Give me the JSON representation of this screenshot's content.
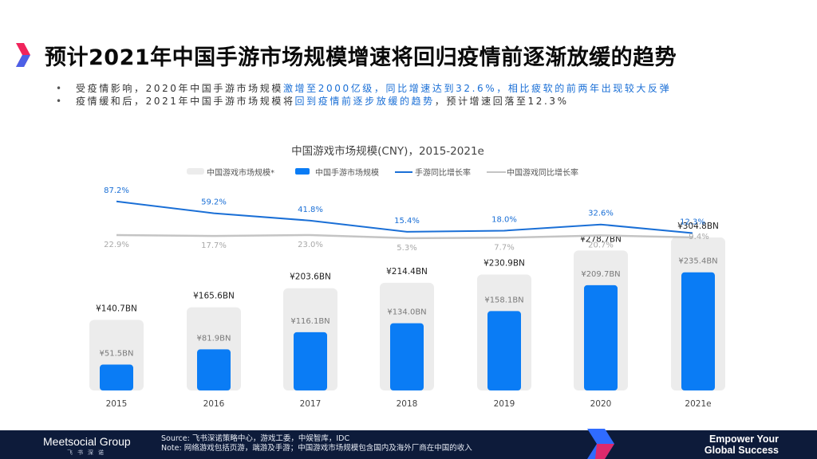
{
  "header": {
    "title": "预计2021年中国手游市场规模增速将回归疫情前逐渐放缓的趋势"
  },
  "bullets": [
    {
      "prefix": "受疫情影响，2020年中国手游市场规模",
      "highlight": "激增至2000亿级，同比增速达到32.6%，相比疲软的前两年出现较大反弹",
      "suffix": ""
    },
    {
      "prefix": "疫情缓和后，2021年中国手游市场规模将",
      "highlight": "回到疫情前逐步放缓的趋势",
      "suffix": "，预计增速回落至12.3%"
    }
  ],
  "colors": {
    "accent": "#1a6fd6",
    "bar_blue": "#0a7cf5",
    "bar_gray": "#ececec",
    "line_blue": "#1a6fd6",
    "line_gray": "#c4c4c4",
    "footer_bg": "#0d1b3a",
    "logo_red": "#f0245c",
    "logo_blue": "#2f6bff"
  },
  "chart_data": {
    "type": "bar",
    "title": "中国游戏市场规模(CNY)，2015-2021e",
    "categories": [
      "2015",
      "2016",
      "2017",
      "2018",
      "2019",
      "2020",
      "2021e"
    ],
    "series": [
      {
        "name": "中国游戏市场规模*",
        "kind": "bar",
        "values": [
          140.7,
          165.6,
          203.6,
          214.4,
          230.9,
          278.7,
          304.8
        ],
        "labels": [
          "¥140.7BN",
          "¥165.6BN",
          "¥203.6BN",
          "¥214.4BN",
          "¥230.9BN",
          "¥278.7BN",
          "¥304.8BN"
        ]
      },
      {
        "name": "中国手游市场规模",
        "kind": "bar",
        "values": [
          51.5,
          81.9,
          116.1,
          134.0,
          158.1,
          209.7,
          235.4
        ],
        "labels": [
          "¥51.5BN",
          "¥81.9BN",
          "¥116.1BN",
          "¥134.0BN",
          "¥158.1BN",
          "¥209.7BN",
          "¥235.4BN"
        ]
      },
      {
        "name": "手游同比增长率",
        "kind": "line",
        "values": [
          87.2,
          59.2,
          41.8,
          15.4,
          18.0,
          32.6,
          12.3
        ],
        "labels": [
          "87.2%",
          "59.2%",
          "41.8%",
          "15.4%",
          "18.0%",
          "32.6%",
          "12.3%"
        ]
      },
      {
        "name": "中国游戏同比增长率",
        "kind": "line",
        "values": [
          22.9,
          17.7,
          23.0,
          5.3,
          7.7,
          20.7,
          9.4
        ],
        "labels": [
          "22.9%",
          "17.7%",
          "23.0%",
          "5.3%",
          "7.7%",
          "20.7%",
          "9.4%"
        ]
      }
    ],
    "ylim": [
      0,
      320
    ]
  },
  "footer": {
    "brand": "Meetsocial Group",
    "brand_sub": "飞书深诺",
    "source_line1": "Source: 飞书深诺策略中心，游戏工委，中娱智库，IDC",
    "source_line2": "Note: 网络游戏包括页游，端游及手游；中国游戏市场规模包含国内及海外厂商在中国的收入",
    "tagline_line1": "Empower Your",
    "tagline_line2": "Global Success"
  }
}
